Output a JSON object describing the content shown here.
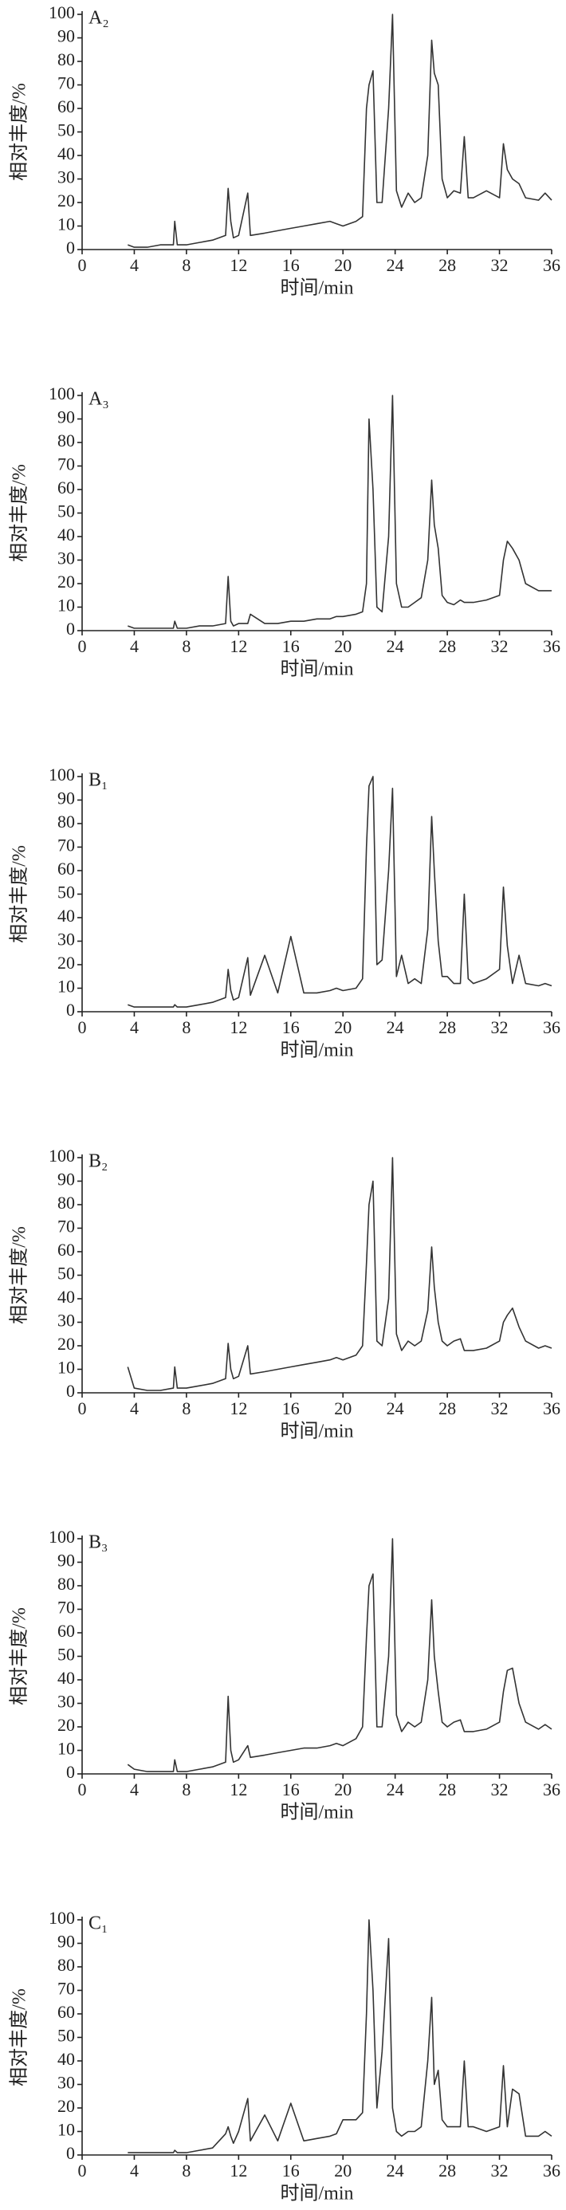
{
  "chart_data": [
    {
      "type": "line",
      "label": "A₂",
      "xlabel": "时间/min",
      "ylabel": "相对丰度/%",
      "color": "#333333",
      "xlim": [
        0,
        36
      ],
      "xticks": [
        0,
        4,
        8,
        12,
        16,
        20,
        24,
        28,
        32,
        36
      ],
      "ylim": [
        0,
        100
      ],
      "yticks": [
        0,
        10,
        20,
        30,
        40,
        50,
        60,
        70,
        80,
        90,
        100
      ],
      "x": [
        3.5,
        4,
        5,
        6,
        7,
        7.1,
        7.3,
        8,
        9,
        10,
        11,
        11.2,
        11.4,
        11.6,
        12,
        12.7,
        12.9,
        14,
        15,
        16,
        17,
        18,
        19,
        19.5,
        20,
        21,
        21.5,
        21.8,
        22,
        22.3,
        22.6,
        23,
        23.5,
        23.8,
        24.1,
        24.5,
        25,
        25.5,
        26,
        26.5,
        26.8,
        27,
        27.3,
        27.6,
        28,
        28.5,
        29,
        29.3,
        29.6,
        30,
        31,
        32,
        32.3,
        32.6,
        33,
        33.5,
        34,
        35,
        35.5,
        36
      ],
      "values": [
        2,
        1,
        1,
        2,
        2,
        12,
        2,
        2,
        3,
        4,
        6,
        26,
        12,
        5,
        6,
        24,
        6,
        7,
        8,
        9,
        10,
        11,
        12,
        11,
        10,
        12,
        14,
        60,
        70,
        76,
        20,
        20,
        60,
        100,
        25,
        18,
        24,
        20,
        22,
        40,
        89,
        75,
        70,
        30,
        22,
        25,
        24,
        48,
        22,
        22,
        25,
        22,
        45,
        34,
        30,
        28,
        22,
        21,
        24,
        21
      ]
    },
    {
      "type": "line",
      "label": "A₃",
      "xlabel": "时间/min",
      "ylabel": "相对丰度/%",
      "color": "#333333",
      "xlim": [
        0,
        36
      ],
      "xticks": [
        0,
        4,
        8,
        12,
        16,
        20,
        24,
        28,
        32,
        36
      ],
      "ylim": [
        0,
        100
      ],
      "yticks": [
        0,
        10,
        20,
        30,
        40,
        50,
        60,
        70,
        80,
        90,
        100
      ],
      "x": [
        3.5,
        4,
        5,
        6,
        7,
        7.1,
        7.3,
        8,
        9,
        10,
        11,
        11.2,
        11.4,
        11.6,
        12,
        12.7,
        12.9,
        14,
        15,
        16,
        17,
        18,
        19,
        19.5,
        20,
        21,
        21.5,
        21.8,
        22,
        22.3,
        22.6,
        23,
        23.5,
        23.8,
        24.1,
        24.5,
        25,
        25.5,
        26,
        26.5,
        26.8,
        27,
        27.3,
        27.6,
        28,
        28.5,
        29,
        29.3,
        29.6,
        30,
        31,
        32,
        32.3,
        32.6,
        33,
        33.5,
        34,
        35,
        35.5,
        36
      ],
      "values": [
        2,
        1,
        1,
        1,
        1,
        4,
        1,
        1,
        2,
        2,
        3,
        23,
        4,
        2,
        3,
        3,
        7,
        3,
        3,
        4,
        4,
        5,
        5,
        6,
        6,
        7,
        8,
        20,
        90,
        60,
        10,
        8,
        40,
        100,
        20,
        10,
        10,
        12,
        14,
        30,
        64,
        45,
        35,
        15,
        12,
        11,
        13,
        12,
        12,
        12,
        13,
        15,
        30,
        38,
        35,
        30,
        20,
        17,
        17,
        17
      ]
    },
    {
      "type": "line",
      "label": "B₁",
      "xlabel": "时间/min",
      "ylabel": "相对丰度/%",
      "color": "#333333",
      "xlim": [
        0,
        36
      ],
      "xticks": [
        0,
        4,
        8,
        12,
        16,
        20,
        24,
        28,
        32,
        36
      ],
      "ylim": [
        0,
        100
      ],
      "yticks": [
        0,
        10,
        20,
        30,
        40,
        50,
        60,
        70,
        80,
        90,
        100
      ],
      "x": [
        3.5,
        4,
        5,
        6,
        7,
        7.1,
        7.3,
        8,
        9,
        10,
        11,
        11.2,
        11.4,
        11.6,
        12,
        12.7,
        12.9,
        14,
        15,
        16,
        17,
        18,
        19,
        19.5,
        20,
        21,
        21.5,
        21.8,
        22,
        22.3,
        22.6,
        23,
        23.5,
        23.8,
        24.1,
        24.5,
        25,
        25.5,
        26,
        26.5,
        26.8,
        27,
        27.3,
        27.6,
        28,
        28.5,
        29,
        29.3,
        29.6,
        30,
        31,
        32,
        32.3,
        32.6,
        33,
        33.5,
        34,
        35,
        35.5,
        36
      ],
      "values": [
        3,
        2,
        2,
        2,
        2,
        3,
        2,
        2,
        3,
        4,
        6,
        18,
        9,
        5,
        6,
        23,
        7,
        24,
        8,
        32,
        8,
        8,
        9,
        10,
        9,
        10,
        14,
        70,
        96,
        100,
        20,
        22,
        60,
        95,
        15,
        24,
        12,
        14,
        12,
        35,
        83,
        60,
        30,
        15,
        15,
        12,
        12,
        50,
        14,
        12,
        14,
        18,
        53,
        28,
        12,
        24,
        12,
        11,
        12,
        11
      ]
    },
    {
      "type": "line",
      "label": "B₂",
      "xlabel": "时间/min",
      "ylabel": "相对丰度/%",
      "color": "#333333",
      "xlim": [
        0,
        36
      ],
      "xticks": [
        0,
        4,
        8,
        12,
        16,
        20,
        24,
        28,
        32,
        36
      ],
      "ylim": [
        0,
        100
      ],
      "yticks": [
        0,
        10,
        20,
        30,
        40,
        50,
        60,
        70,
        80,
        90,
        100
      ],
      "x": [
        3.5,
        4,
        5,
        6,
        7,
        7.1,
        7.3,
        8,
        9,
        10,
        11,
        11.2,
        11.4,
        11.6,
        12,
        12.7,
        12.9,
        14,
        15,
        16,
        17,
        18,
        19,
        19.5,
        20,
        21,
        21.5,
        21.8,
        22,
        22.3,
        22.6,
        23,
        23.5,
        23.8,
        24.1,
        24.5,
        25,
        25.5,
        26,
        26.5,
        26.8,
        27,
        27.3,
        27.6,
        28,
        28.5,
        29,
        29.3,
        29.6,
        30,
        31,
        32,
        32.3,
        32.6,
        33,
        33.5,
        34,
        35,
        35.5,
        36
      ],
      "values": [
        11,
        2,
        1,
        1,
        2,
        11,
        2,
        2,
        3,
        4,
        6,
        21,
        10,
        6,
        7,
        20,
        8,
        9,
        10,
        11,
        12,
        13,
        14,
        15,
        14,
        16,
        20,
        55,
        80,
        90,
        22,
        20,
        40,
        100,
        25,
        18,
        22,
        20,
        22,
        35,
        62,
        45,
        30,
        22,
        20,
        22,
        23,
        18,
        18,
        18,
        19,
        22,
        30,
        33,
        36,
        28,
        22,
        19,
        20,
        19
      ]
    },
    {
      "type": "line",
      "label": "B₃",
      "xlabel": "时间/min",
      "ylabel": "相对丰度/%",
      "color": "#333333",
      "xlim": [
        0,
        36
      ],
      "xticks": [
        0,
        4,
        8,
        12,
        16,
        20,
        24,
        28,
        32,
        36
      ],
      "ylim": [
        0,
        100
      ],
      "yticks": [
        0,
        10,
        20,
        30,
        40,
        50,
        60,
        70,
        80,
        90,
        100
      ],
      "x": [
        3.5,
        4,
        5,
        6,
        7,
        7.1,
        7.3,
        8,
        9,
        10,
        11,
        11.2,
        11.4,
        11.6,
        12,
        12.7,
        12.9,
        14,
        15,
        16,
        17,
        18,
        19,
        19.5,
        20,
        21,
        21.5,
        21.8,
        22,
        22.3,
        22.6,
        23,
        23.5,
        23.8,
        24.1,
        24.5,
        25,
        25.5,
        26,
        26.5,
        26.8,
        27,
        27.3,
        27.6,
        28,
        28.5,
        29,
        29.3,
        29.6,
        30,
        31,
        32,
        32.3,
        32.6,
        33,
        33.5,
        34,
        35,
        35.5,
        36
      ],
      "values": [
        4,
        2,
        1,
        1,
        1,
        6,
        1,
        1,
        2,
        3,
        5,
        33,
        10,
        5,
        6,
        12,
        7,
        8,
        9,
        10,
        11,
        11,
        12,
        13,
        12,
        15,
        20,
        58,
        80,
        85,
        20,
        20,
        50,
        100,
        25,
        18,
        22,
        20,
        22,
        40,
        74,
        50,
        35,
        22,
        20,
        22,
        23,
        18,
        18,
        18,
        19,
        22,
        35,
        44,
        45,
        30,
        22,
        19,
        21,
        19
      ]
    },
    {
      "type": "line",
      "label": "C₁",
      "xlabel": "时间/min",
      "ylabel": "相对丰度/%",
      "color": "#333333",
      "xlim": [
        0,
        36
      ],
      "xticks": [
        0,
        4,
        8,
        12,
        16,
        20,
        24,
        28,
        32,
        36
      ],
      "ylim": [
        0,
        100
      ],
      "yticks": [
        0,
        10,
        20,
        30,
        40,
        50,
        60,
        70,
        80,
        90,
        100
      ],
      "x": [
        3.5,
        4,
        5,
        6,
        7,
        7.1,
        7.3,
        8,
        9,
        10,
        11,
        11.2,
        11.4,
        11.6,
        12,
        12.7,
        12.9,
        14,
        15,
        16,
        17,
        18,
        19,
        19.5,
        20,
        21,
        21.5,
        21.8,
        22,
        22.3,
        22.6,
        23,
        23.5,
        23.8,
        24.1,
        24.5,
        25,
        25.5,
        26,
        26.5,
        26.8,
        27,
        27.3,
        27.6,
        28,
        28.5,
        29,
        29.3,
        29.6,
        30,
        31,
        32,
        32.3,
        32.6,
        33,
        33.5,
        34,
        35,
        35.5,
        36
      ],
      "values": [
        1,
        1,
        1,
        1,
        1,
        2,
        1,
        1,
        2,
        3,
        9,
        12,
        8,
        5,
        10,
        24,
        6,
        17,
        6,
        22,
        6,
        7,
        8,
        9,
        15,
        15,
        18,
        60,
        100,
        70,
        20,
        44,
        92,
        20,
        10,
        8,
        10,
        10,
        12,
        40,
        67,
        30,
        36,
        15,
        12,
        12,
        12,
        40,
        12,
        12,
        10,
        12,
        38,
        12,
        28,
        26,
        8,
        8,
        10,
        8
      ]
    }
  ]
}
